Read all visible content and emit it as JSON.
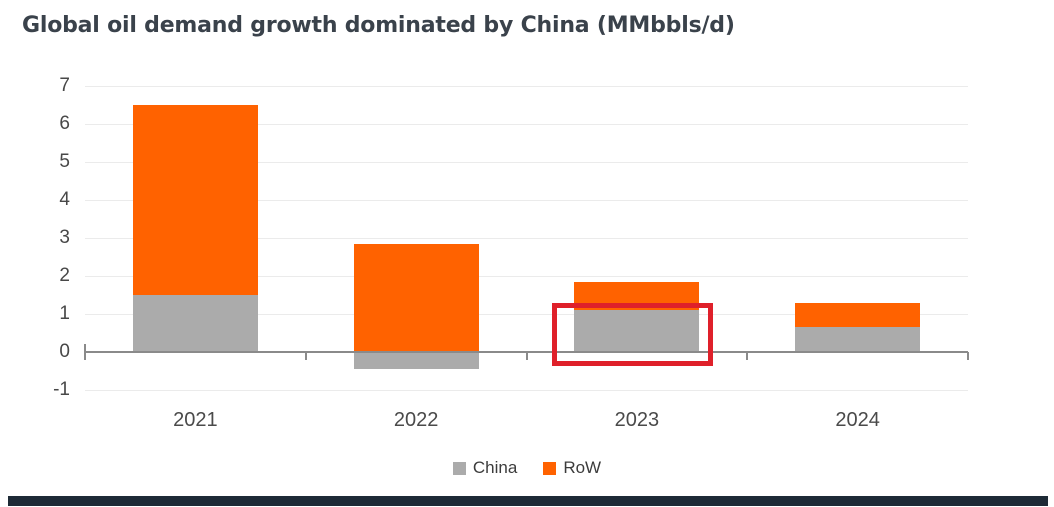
{
  "title": "Global oil demand growth dominated by China (MMbbls/d)",
  "colors": {
    "background": "#ffffff",
    "china": "#ababab",
    "row": "#ff6200",
    "annotation": "#df202a",
    "title_text": "#3a424b",
    "axis_label_text": "#484848",
    "grid": "#ebebeb",
    "axis_line": "#8a8a8a",
    "footer_bar": "#1d2a36"
  },
  "chart_data": {
    "type": "bar",
    "stacked": true,
    "title": "Global oil demand growth dominated by China (MMbbls/d)",
    "unit": "MMbbls/d",
    "categories": [
      "2021",
      "2022",
      "2023",
      "2024"
    ],
    "series": [
      {
        "name": "China",
        "color": "#ababab",
        "values": [
          1.5,
          -0.45,
          1.1,
          0.65
        ]
      },
      {
        "name": "RoW",
        "color": "#ff6200",
        "values": [
          5.0,
          2.85,
          0.75,
          0.65
        ]
      }
    ],
    "stacked_totals": [
      6.5,
      2.4,
      1.85,
      1.3
    ],
    "ylim": [
      -1,
      7
    ],
    "yticks": [
      7,
      6,
      5,
      4,
      3,
      2,
      1,
      0,
      -1
    ],
    "grid": true,
    "legend_position": "bottom",
    "annotation": {
      "shape": "rectangle",
      "color": "#df202a",
      "target": "China segment of 2023 bar"
    }
  },
  "y_axis": {
    "tick_labels": [
      "7",
      "6",
      "5",
      "4",
      "3",
      "2",
      "1",
      "0",
      "-1"
    ]
  },
  "x_axis": {
    "labels": [
      "2021",
      "2022",
      "2023",
      "2024"
    ]
  },
  "legend": {
    "items": [
      {
        "label": "China",
        "color": "#ababab"
      },
      {
        "label": "RoW",
        "color": "#ff6200"
      }
    ]
  }
}
